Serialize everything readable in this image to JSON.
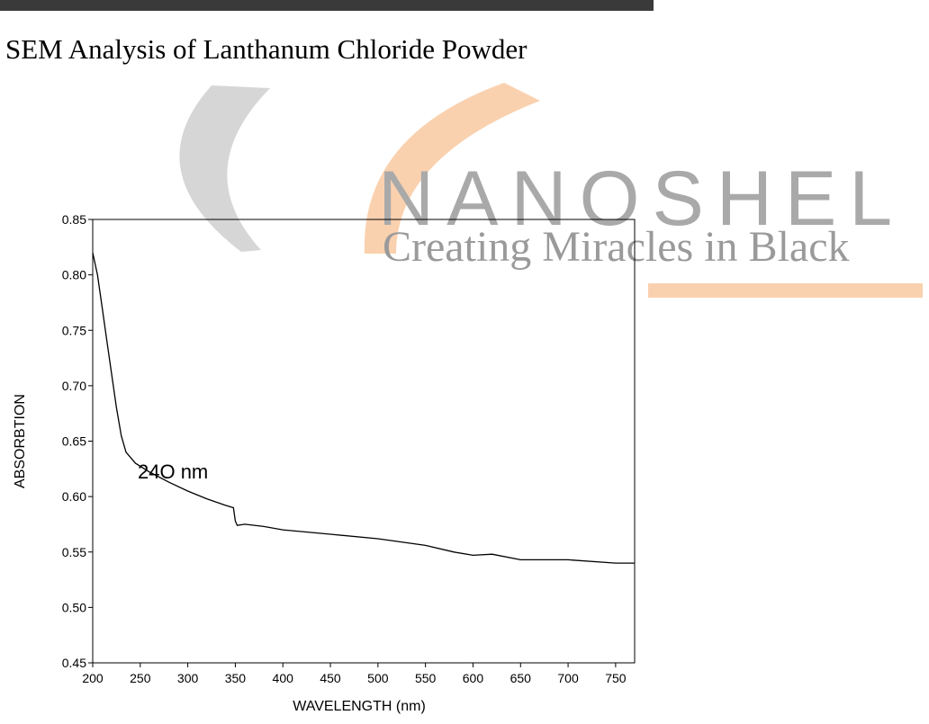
{
  "heading": "SEM Analysis of Lanthanum Chloride Powder",
  "watermark": {
    "brand": "NANOSHEL",
    "tagline": "Creating Miracles in Black"
  },
  "chart_data": {
    "type": "line",
    "xlabel": "WAVELENGTH (nm)",
    "ylabel": "ABSORBTION",
    "annotation": "24O nm",
    "x": [
      200,
      205,
      210,
      215,
      220,
      225,
      230,
      235,
      245,
      260,
      280,
      300,
      320,
      340,
      348,
      350,
      352,
      360,
      380,
      400,
      450,
      500,
      550,
      580,
      600,
      620,
      650,
      700,
      750,
      770
    ],
    "values": [
      0.82,
      0.8,
      0.77,
      0.74,
      0.71,
      0.68,
      0.655,
      0.64,
      0.63,
      0.622,
      0.613,
      0.605,
      0.598,
      0.592,
      0.59,
      0.578,
      0.574,
      0.575,
      0.573,
      0.57,
      0.566,
      0.562,
      0.556,
      0.55,
      0.547,
      0.548,
      0.543,
      0.543,
      0.54,
      0.54
    ],
    "color": "#000000",
    "xlim": [
      200,
      770
    ],
    "ylim": [
      0.45,
      0.85
    ],
    "xticks": [
      200,
      250,
      300,
      350,
      400,
      450,
      500,
      550,
      600,
      650,
      700,
      750
    ],
    "yticks": [
      {
        "value": 0.45,
        "label": "0.45"
      },
      {
        "value": 0.5,
        "label": "0.50"
      },
      {
        "value": 0.55,
        "label": "0.55"
      },
      {
        "value": 0.6,
        "label": "0.60"
      },
      {
        "value": 0.65,
        "label": "0.65"
      },
      {
        "value": 0.7,
        "label": "0.70"
      },
      {
        "value": 0.75,
        "label": "0.75"
      },
      {
        "value": 0.8,
        "label": "0.80"
      },
      {
        "value": 0.85,
        "label": "0.85"
      }
    ]
  }
}
